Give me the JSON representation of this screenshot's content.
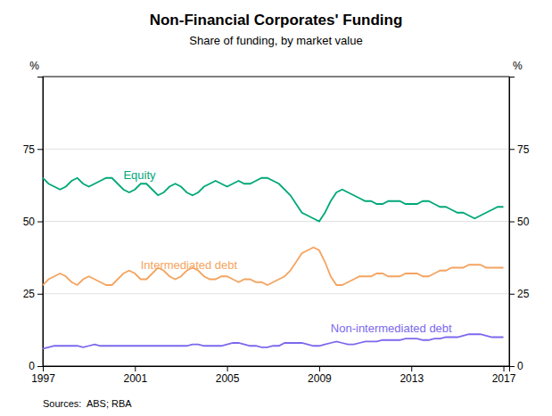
{
  "chart_data": {
    "type": "line",
    "title": "Non-Financial Corporates' Funding",
    "subtitle": "Share of funding, by market value",
    "ylabel": "%",
    "y2label": "%",
    "source": "Sources:  ABS; RBA",
    "xlim": [
      1997.0,
      2017.25
    ],
    "xticks": [
      1997,
      2001,
      2005,
      2009,
      2013,
      2017
    ],
    "ylim": [
      0,
      100
    ],
    "yticks": [
      0,
      25,
      50,
      75
    ],
    "y2lim": [
      0,
      100
    ],
    "y2ticks": [
      0,
      25,
      50,
      75
    ],
    "grid": true,
    "x": [
      1997.0,
      1997.25,
      1997.5,
      1997.75,
      1998.0,
      1998.25,
      1998.5,
      1998.75,
      1999.0,
      1999.25,
      1999.5,
      1999.75,
      2000.0,
      2000.25,
      2000.5,
      2000.75,
      2001.0,
      2001.25,
      2001.5,
      2001.75,
      2002.0,
      2002.25,
      2002.5,
      2002.75,
      2003.0,
      2003.25,
      2003.5,
      2003.75,
      2004.0,
      2004.25,
      2004.5,
      2004.75,
      2005.0,
      2005.25,
      2005.5,
      2005.75,
      2006.0,
      2006.25,
      2006.5,
      2006.75,
      2007.0,
      2007.25,
      2007.5,
      2007.75,
      2008.0,
      2008.25,
      2008.5,
      2008.75,
      2009.0,
      2009.25,
      2009.5,
      2009.75,
      2010.0,
      2010.25,
      2010.5,
      2010.75,
      2011.0,
      2011.25,
      2011.5,
      2011.75,
      2012.0,
      2012.25,
      2012.5,
      2012.75,
      2013.0,
      2013.25,
      2013.5,
      2013.75,
      2014.0,
      2014.25,
      2014.5,
      2014.75,
      2015.0,
      2015.25,
      2015.5,
      2015.75,
      2016.0,
      2016.25,
      2016.5,
      2016.75,
      2017.0
    ],
    "series": [
      {
        "name": "Equity",
        "color": "#00A878",
        "values": [
          65,
          63,
          62,
          61,
          62,
          64,
          65,
          63,
          62,
          63,
          64,
          65,
          65,
          63,
          61,
          60,
          61,
          63,
          63,
          61,
          59,
          60,
          62,
          63,
          62,
          60,
          59,
          60,
          62,
          63,
          64,
          63,
          62,
          63,
          64,
          63,
          63,
          64,
          65,
          65,
          64,
          63,
          61,
          59,
          56,
          53,
          52,
          51,
          50,
          53,
          57,
          60,
          61,
          60,
          59,
          58,
          57,
          57,
          56,
          56,
          57,
          57,
          57,
          56,
          56,
          56,
          57,
          57,
          56,
          55,
          55,
          54,
          53,
          53,
          52,
          51,
          52,
          53,
          54,
          55,
          55
        ]
      },
      {
        "name": "Intermediated debt",
        "color": "#F4A460",
        "values": [
          28,
          30,
          31,
          32,
          31,
          29,
          28,
          30,
          31,
          30,
          29,
          28,
          28,
          30,
          32,
          33,
          32,
          30,
          30,
          32,
          34,
          33,
          31,
          30,
          31,
          33,
          34,
          33,
          31,
          30,
          30,
          31,
          31,
          30,
          29,
          30,
          30,
          29,
          29,
          28,
          29,
          30,
          31,
          33,
          36,
          39,
          40,
          41,
          40,
          36,
          31,
          28,
          28,
          29,
          30,
          31,
          31,
          31,
          32,
          32,
          31,
          31,
          31,
          32,
          32,
          32,
          31,
          31,
          32,
          33,
          33,
          34,
          34,
          34,
          35,
          35,
          35,
          34,
          34,
          34,
          34
        ]
      },
      {
        "name": "Non-intermediated debt",
        "color": "#7B68EE",
        "values": [
          6,
          6.5,
          7,
          7,
          7,
          7,
          7,
          6.5,
          7,
          7.5,
          7,
          7,
          7,
          7,
          7,
          7,
          7,
          7,
          7,
          7,
          7,
          7,
          7,
          7,
          7,
          7,
          7.5,
          7.5,
          7,
          7,
          7,
          7,
          7.5,
          8,
          8,
          7.5,
          7,
          7,
          6.5,
          6.5,
          7,
          7,
          8,
          8,
          8,
          8,
          7.5,
          7,
          7,
          7.5,
          8,
          8.5,
          8,
          7.5,
          7.5,
          8,
          8.5,
          8.5,
          8.5,
          9,
          9,
          9,
          9,
          9.5,
          9.5,
          9.5,
          9,
          9,
          9.5,
          9.5,
          10,
          10,
          10,
          10.5,
          11,
          11,
          11,
          10.5,
          10,
          10,
          10
        ]
      }
    ]
  }
}
